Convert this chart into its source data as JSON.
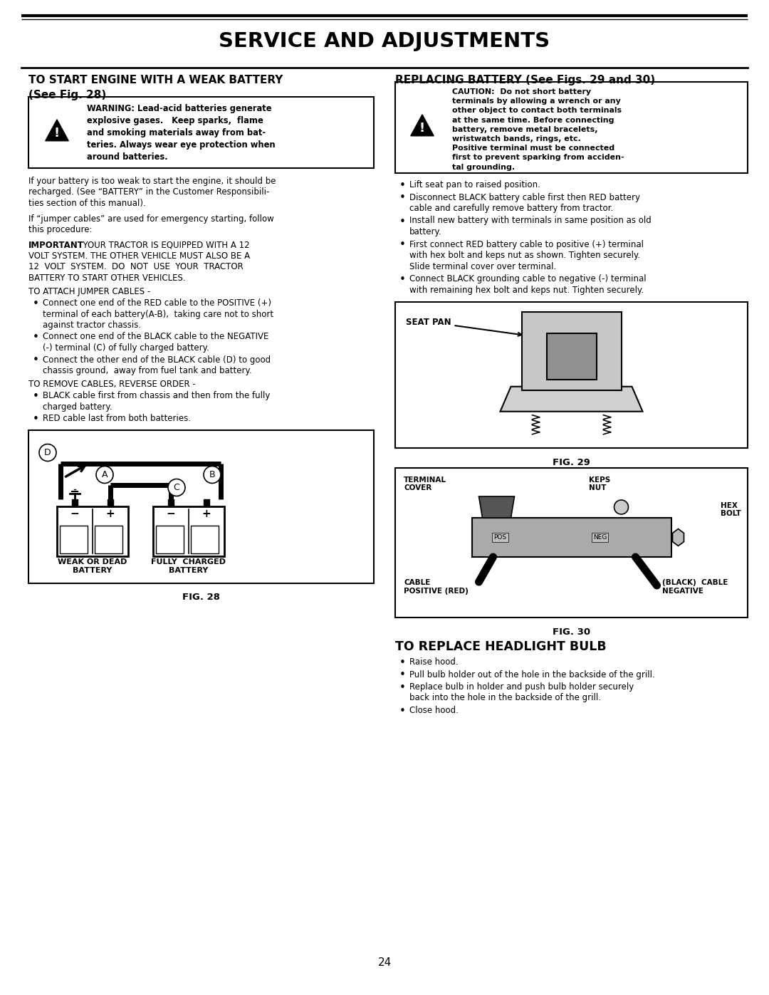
{
  "title": "SERVICE AND ADJUSTMENTS",
  "page_number": "24",
  "bg_color": "#ffffff",
  "left_section_heading1": "TO START ENGINE WITH A WEAK BATTERY",
  "left_section_heading2": "(See Fig. 28)",
  "warning_lines": [
    "WARNING: Lead-acid batteries generate",
    "explosive gases.   Keep sparks,  flame",
    "and smoking materials away from bat-",
    "teries. Always wear eye protection when",
    "around batteries."
  ],
  "body_lines1": [
    "If your battery is too weak to start the engine, it should be",
    "recharged. (See “BATTERY” in the Customer Responsibili-",
    "ties section of this manual)."
  ],
  "body_lines2": [
    "If “jumper cables” are used for emergency starting, follow",
    "this procedure:"
  ],
  "important_prefix": "IMPORTANT",
  "important_rest": ":  YOUR TRACTOR IS EQUIPPED WITH A 12",
  "important_lines2": [
    "VOLT SYSTEM. THE OTHER VEHICLE MUST ALSO BE A",
    "12  VOLT  SYSTEM.  DO  NOT  USE  YOUR  TRACTOR",
    "BATTERY TO START OTHER VEHICLES."
  ],
  "attach_heading": "TO ATTACH JUMPER CABLES -",
  "attach_bullets": [
    [
      "Connect one end of the RED cable to the POSITIVE (+)",
      "terminal of each battery(A-B),  taking care not to short",
      "against tractor chassis."
    ],
    [
      "Connect one end of the BLACK cable to the NEGATIVE",
      "(-) terminal (C) of fully charged battery."
    ],
    [
      "Connect the other end of the BLACK cable (D) to good",
      "chassis ground,  away from fuel tank and battery."
    ]
  ],
  "remove_heading": "TO REMOVE CABLES, REVERSE ORDER -",
  "remove_bullets": [
    [
      "BLACK cable first from chassis and then from the fully",
      "charged battery."
    ],
    [
      "RED cable last from both batteries."
    ]
  ],
  "fig28_caption": "FIG. 28",
  "right_section_heading": "REPLACING BATTERY (See Figs. 29 and 30)",
  "caution_lines": [
    "CAUTION:  Do not short battery",
    "terminals by allowing a wrench or any",
    "other object to contact both terminals",
    "at the same time. Before connecting",
    "battery, remove metal bracelets,",
    "wristwatch bands, rings, etc.",
    "Positive terminal must be connected",
    "first to prevent sparking from acciden-",
    "tal grounding."
  ],
  "right_bullets": [
    [
      "Lift seat pan to raised position."
    ],
    [
      "Disconnect BLACK battery cable first then RED battery",
      "cable and carefully remove battery from tractor."
    ],
    [
      "Install new battery with terminals in same position as old",
      "battery."
    ],
    [
      "First connect RED battery cable to positive (+) terminal",
      "with hex bolt and keps nut as shown. Tighten securely.",
      "Slide terminal cover over terminal."
    ],
    [
      "Connect BLACK grounding cable to negative (-) terminal",
      "with remaining hex bolt and keps nut. Tighten securely."
    ]
  ],
  "fig29_caption": "FIG. 29",
  "fig30_caption": "FIG. 30",
  "headlight_heading": "TO REPLACE HEADLIGHT BULB",
  "headlight_bullets": [
    [
      "Raise hood."
    ],
    [
      "Pull bulb holder out of the hole in the backside of the grill."
    ],
    [
      "Replace bulb in holder and push bulb holder securely",
      "back into the hole in the backside of the grill."
    ],
    [
      "Close hood."
    ]
  ]
}
